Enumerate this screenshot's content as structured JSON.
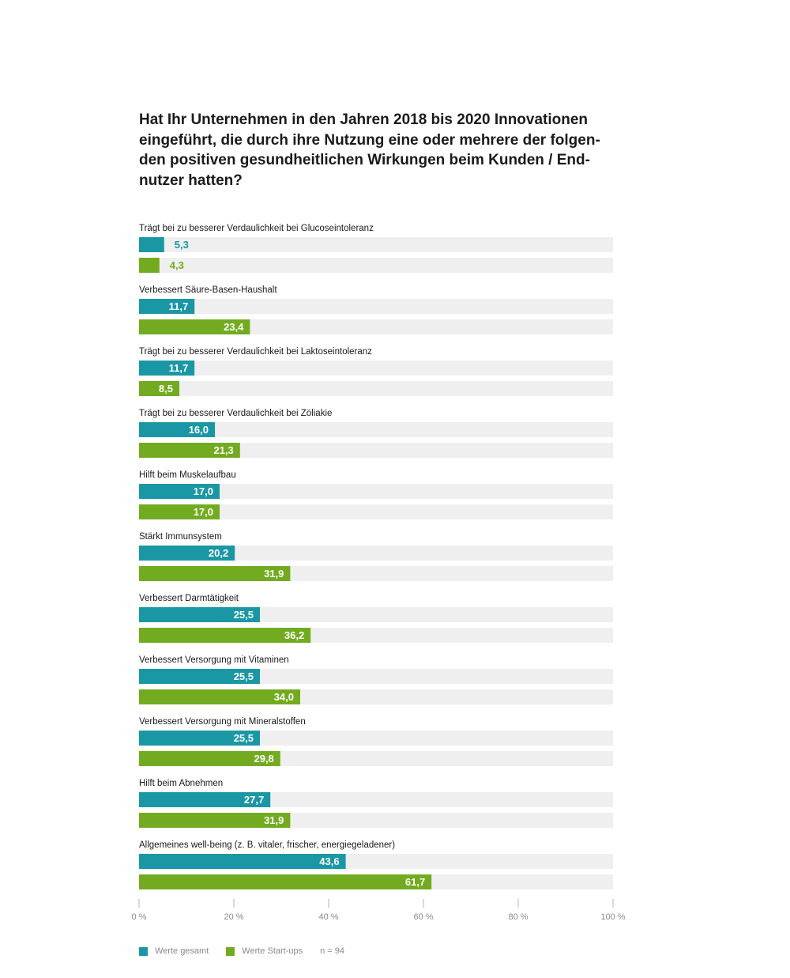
{
  "chart_data": {
    "type": "bar",
    "orientation": "horizontal",
    "title": "Hat Ihr Unternehmen in den Jahren 2018 bis 2020 Innovationen eingeführt, die durch ihre Nutzung eine oder mehrere der folgen-den positiven gesundheitlichen Wirkungen beim Kunden / End-nutzer hatten?",
    "categories": [
      "Trägt bei zu besserer Verdaulichkeit bei Glucoseintoleranz",
      "Verbessert Säure-Basen-Haushalt",
      "Trägt bei zu besserer Verdaulichkeit bei Laktoseintoleranz",
      "Trägt bei zu besserer Verdaulichkeit bei Zöliakie",
      "Hilft beim Muskelaufbau",
      "Stärkt Immunsystem",
      "Verbessert Darmtätigkeit",
      "Verbessert Versorgung mit Vitaminen",
      "Verbessert Versorgung mit Mineralstoffen",
      "Hilft beim Abnehmen",
      "Allgemeines well-being (z. B. vitaler, frischer, energiegeladener)"
    ],
    "series": [
      {
        "name": "Werte gesamt",
        "color": "#1a97a5",
        "values": [
          5.3,
          11.7,
          11.7,
          16.0,
          17.0,
          20.2,
          25.5,
          25.5,
          25.5,
          27.7,
          43.6
        ],
        "labels": [
          "5,3",
          "11,7",
          "11,7",
          "16,0",
          "17,0",
          "20,2",
          "25,5",
          "25,5",
          "25,5",
          "27,7",
          "43,6"
        ]
      },
      {
        "name": "Werte Start-ups",
        "color": "#72ab1f",
        "values": [
          4.3,
          23.4,
          8.5,
          21.3,
          17.0,
          31.9,
          36.2,
          34.0,
          29.8,
          31.9,
          61.7
        ],
        "labels": [
          "4,3",
          "23,4",
          "8,5",
          "21,3",
          "17,0",
          "31,9",
          "36,2",
          "34,0",
          "29,8",
          "31,9",
          "61,7"
        ]
      }
    ],
    "xlim": [
      0,
      100
    ],
    "xticks": [
      "0 %",
      "20 %",
      "40 %",
      "60 %",
      "80 %",
      "100 %"
    ],
    "background_track_color": "#efefef",
    "note": "n = 94"
  }
}
